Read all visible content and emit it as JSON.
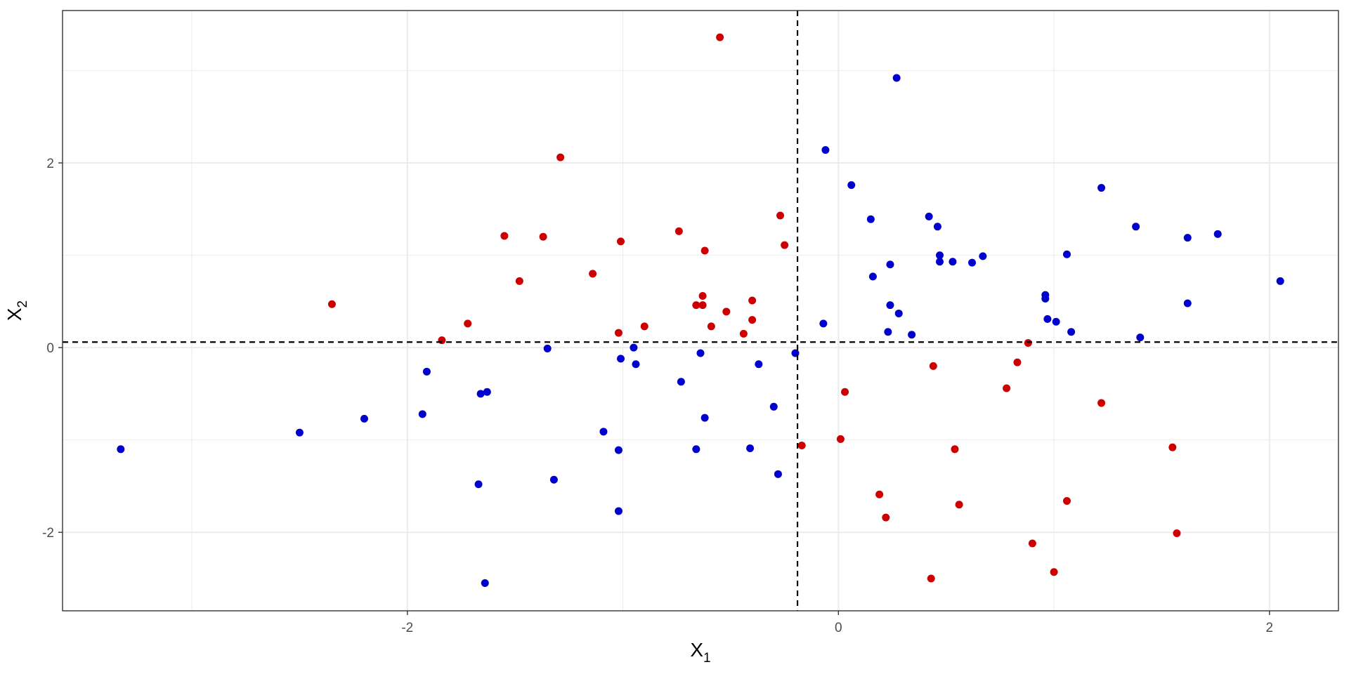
{
  "chart_data": {
    "type": "scatter",
    "title": "",
    "xlabel": "X",
    "xlabel_subscript": "1",
    "ylabel": "X",
    "ylabel_subscript": "2",
    "xlim": [
      -3.6,
      2.32
    ],
    "ylim": [
      -2.85,
      3.65
    ],
    "x_ticks": [
      -2,
      0,
      2
    ],
    "x_tick_labels": [
      "-2",
      "0",
      "2"
    ],
    "y_ticks": [
      -2,
      0,
      2
    ],
    "y_tick_labels": [
      "-2",
      "0",
      "2"
    ],
    "x_minor": [
      -3,
      -1,
      1
    ],
    "y_minor": [
      -1,
      1,
      3
    ],
    "grid": true,
    "reference_lines": {
      "vertical_x": -0.19,
      "horizontal_y": 0.06
    },
    "colors": {
      "blue": "#0000cc",
      "red": "#cc0000",
      "grid": "#ebebeb",
      "panel_border": "#333333"
    },
    "series": [
      {
        "color": "blue",
        "points": [
          [
            -3.33,
            -1.1
          ],
          [
            -2.5,
            -0.92
          ],
          [
            -2.2,
            -0.77
          ],
          [
            -1.93,
            -0.72
          ],
          [
            -1.91,
            -0.26
          ],
          [
            -1.66,
            -0.5
          ],
          [
            -1.63,
            -0.48
          ],
          [
            -1.67,
            -1.48
          ],
          [
            -1.64,
            -2.55
          ],
          [
            -1.35,
            -0.01
          ],
          [
            -1.32,
            -1.43
          ],
          [
            -1.09,
            -0.91
          ],
          [
            -1.02,
            -1.11
          ],
          [
            -1.02,
            -1.77
          ],
          [
            -1.01,
            -0.12
          ],
          [
            -0.95,
            0.0
          ],
          [
            -0.94,
            -0.18
          ],
          [
            -0.73,
            -0.37
          ],
          [
            -0.66,
            -1.1
          ],
          [
            -0.64,
            -0.06
          ],
          [
            -0.62,
            -0.76
          ],
          [
            -0.41,
            -1.09
          ],
          [
            -0.37,
            -0.18
          ],
          [
            -0.3,
            -0.64
          ],
          [
            -0.28,
            -1.37
          ],
          [
            -0.2,
            -0.06
          ],
          [
            -0.07,
            0.26
          ],
          [
            -0.06,
            2.14
          ],
          [
            0.06,
            1.76
          ],
          [
            0.15,
            1.39
          ],
          [
            0.16,
            0.77
          ],
          [
            0.23,
            0.17
          ],
          [
            0.24,
            0.9
          ],
          [
            0.24,
            0.46
          ],
          [
            0.27,
            2.92
          ],
          [
            0.28,
            0.37
          ],
          [
            0.34,
            0.14
          ],
          [
            0.42,
            1.42
          ],
          [
            0.46,
            1.31
          ],
          [
            0.47,
            1.0
          ],
          [
            0.47,
            0.93
          ],
          [
            0.53,
            0.93
          ],
          [
            0.62,
            0.92
          ],
          [
            0.67,
            0.99
          ],
          [
            0.96,
            0.57
          ],
          [
            0.96,
            0.53
          ],
          [
            0.97,
            0.31
          ],
          [
            1.01,
            0.28
          ],
          [
            1.06,
            1.01
          ],
          [
            1.08,
            0.17
          ],
          [
            1.22,
            1.73
          ],
          [
            1.38,
            1.31
          ],
          [
            1.4,
            0.11
          ],
          [
            1.62,
            1.19
          ],
          [
            1.62,
            0.48
          ],
          [
            1.76,
            1.23
          ],
          [
            2.05,
            0.72
          ]
        ]
      },
      {
        "color": "red",
        "points": [
          [
            -0.55,
            3.36
          ],
          [
            -1.29,
            2.06
          ],
          [
            -2.35,
            0.47
          ],
          [
            -1.84,
            0.08
          ],
          [
            -1.72,
            0.26
          ],
          [
            -1.55,
            1.21
          ],
          [
            -1.48,
            0.72
          ],
          [
            -1.37,
            1.2
          ],
          [
            -1.14,
            0.8
          ],
          [
            -1.02,
            0.16
          ],
          [
            -1.01,
            1.15
          ],
          [
            -0.9,
            0.23
          ],
          [
            -0.74,
            1.26
          ],
          [
            -0.66,
            0.46
          ],
          [
            -0.63,
            0.46
          ],
          [
            -0.63,
            0.56
          ],
          [
            -0.62,
            1.05
          ],
          [
            -0.59,
            0.23
          ],
          [
            -0.52,
            0.39
          ],
          [
            -0.44,
            0.15
          ],
          [
            -0.4,
            0.51
          ],
          [
            -0.4,
            0.3
          ],
          [
            -0.27,
            1.43
          ],
          [
            -0.25,
            1.11
          ],
          [
            -0.17,
            -1.06
          ],
          [
            0.01,
            -0.99
          ],
          [
            0.03,
            -0.48
          ],
          [
            0.19,
            -1.59
          ],
          [
            0.22,
            -1.84
          ],
          [
            0.44,
            -0.2
          ],
          [
            0.43,
            -2.5
          ],
          [
            0.54,
            -1.1
          ],
          [
            0.56,
            -1.7
          ],
          [
            0.78,
            -0.44
          ],
          [
            0.83,
            -0.16
          ],
          [
            0.88,
            0.05
          ],
          [
            0.9,
            -2.12
          ],
          [
            1.0,
            -2.43
          ],
          [
            1.06,
            -1.66
          ],
          [
            1.22,
            -0.6
          ],
          [
            1.55,
            -1.08
          ],
          [
            1.57,
            -2.01
          ]
        ]
      }
    ]
  }
}
